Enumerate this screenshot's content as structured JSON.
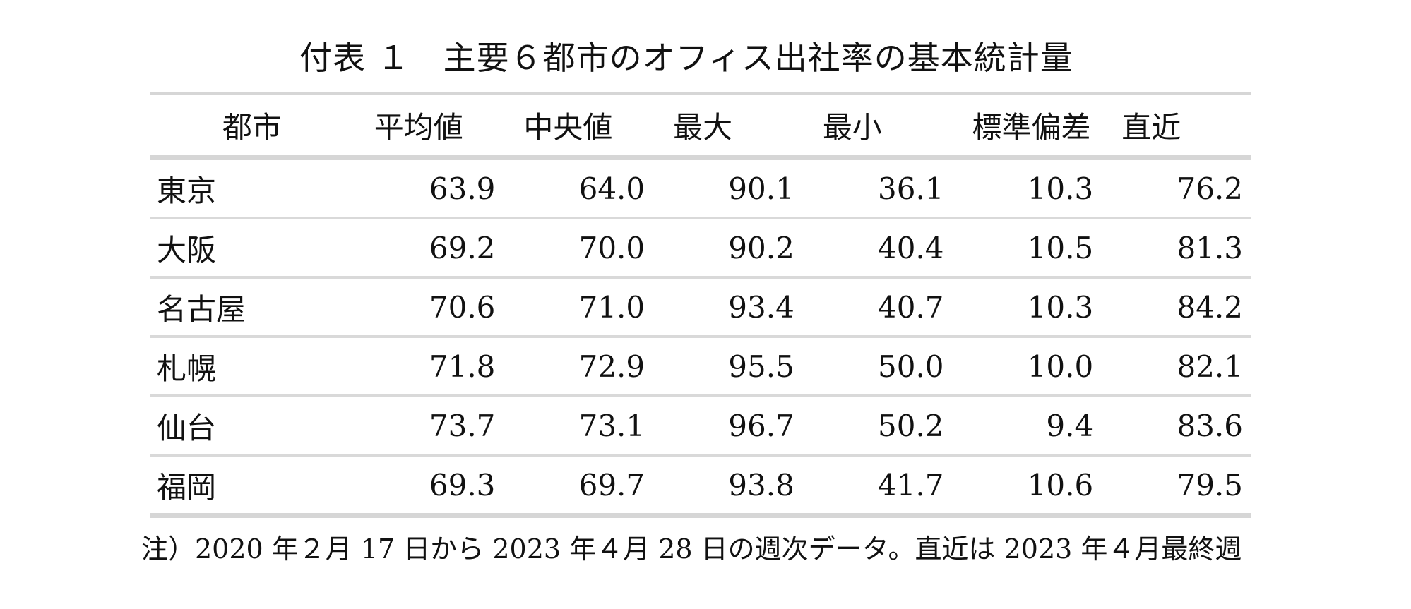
{
  "title": "付表 １　主要６都市のオフィス出社率の基本統計量",
  "table": {
    "headers": [
      "都市",
      "平均値",
      "中央値",
      "最大",
      "最小",
      "標準偏差",
      "直近"
    ],
    "rows": [
      [
        "東京",
        "63.9",
        "64.0",
        "90.1",
        "36.1",
        "10.3",
        "76.2"
      ],
      [
        "大阪",
        "69.2",
        "70.0",
        "90.2",
        "40.4",
        "10.5",
        "81.3"
      ],
      [
        "名古屋",
        "70.6",
        "71.0",
        "93.4",
        "40.7",
        "10.3",
        "84.2"
      ],
      [
        "札幌",
        "71.8",
        "72.9",
        "95.5",
        "50.0",
        "10.0",
        "82.1"
      ],
      [
        "仙台",
        "73.7",
        "73.1",
        "96.7",
        "50.2",
        "9.4",
        "83.6"
      ],
      [
        "福岡",
        "69.3",
        "69.7",
        "93.8",
        "41.7",
        "10.6",
        "79.5"
      ]
    ]
  },
  "note": "注）2020 年２月 17 日から 2023 年４月 28 日の週次データ。直近は 2023 年４月最終週"
}
